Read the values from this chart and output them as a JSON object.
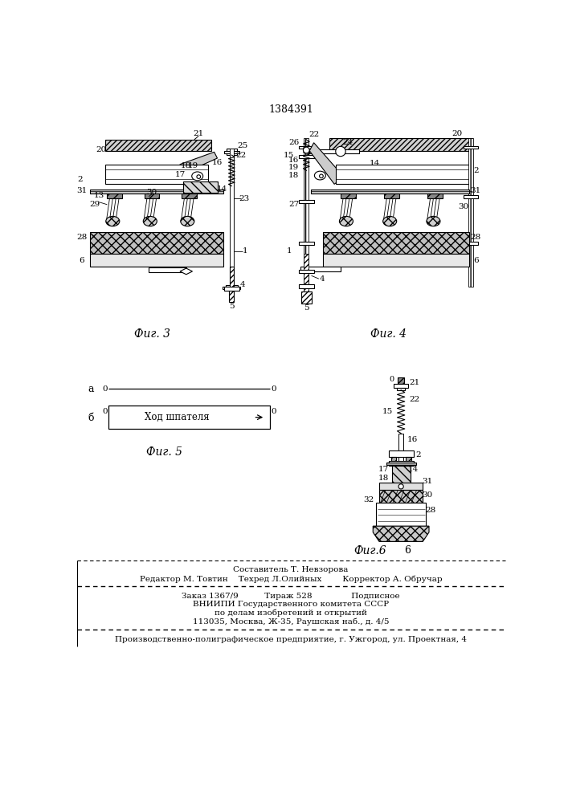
{
  "patent_number": "1384391",
  "background_color": "#ffffff",
  "line_color": "#000000",
  "fig_width": 7.07,
  "fig_height": 10.0,
  "footer_lines": [
    "Составитель Т. Невзорова",
    "Редактор М. Товтин    Техред Л.Олийных        Корректор А. Обручар",
    "Заказ 1367/9          Тираж 528               Подписное",
    "ВНИИПИ Государственного комитета СССР",
    "по делам изобретений и открытий",
    "113035, Москва, Ж-35, Раушская наб., д. 4/5",
    "Производственно-полиграфическое предприятие, г. Ужгород, ул. Проектная, 4"
  ],
  "fig3_caption": "Фиг. 3",
  "fig4_caption": "Фиг. 4",
  "fig5_caption": "Фиг. 5",
  "fig6_caption": "Фиг.6",
  "fig5_label_a": "а",
  "fig5_label_b": "б",
  "fig5_text": "Ход шпателя"
}
